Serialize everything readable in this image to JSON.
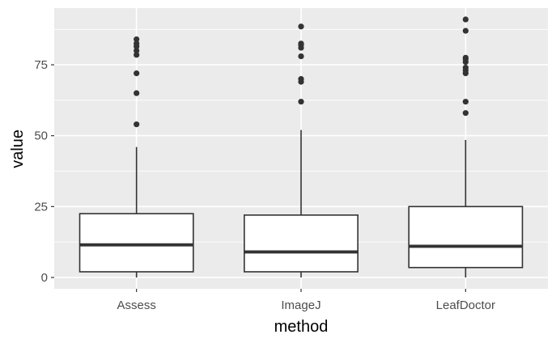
{
  "chart_data": {
    "type": "box",
    "xlabel": "method",
    "ylabel": "value",
    "ylim": [
      -4,
      95
    ],
    "yticks": [
      0,
      25,
      50,
      75
    ],
    "grid": true,
    "categories": [
      "Assess",
      "ImageJ",
      "LeafDoctor"
    ],
    "boxes": [
      {
        "name": "Assess",
        "min": 0,
        "q1": 2,
        "median": 11.5,
        "q3": 22.5,
        "whisker_high": 46,
        "outliers": [
          54,
          65,
          72,
          78.5,
          80,
          81.5,
          82.5,
          84
        ]
      },
      {
        "name": "ImageJ",
        "min": 0,
        "q1": 2,
        "median": 9,
        "q3": 22,
        "whisker_high": 52,
        "outliers": [
          62,
          69,
          70,
          78,
          81,
          82,
          82.5,
          88.5
        ]
      },
      {
        "name": "LeafDoctor",
        "min": 0,
        "q1": 3.5,
        "median": 11,
        "q3": 25,
        "whisker_high": 48.5,
        "outliers": [
          58,
          62,
          72,
          73,
          74,
          76,
          77,
          77.5,
          87,
          91
        ]
      }
    ],
    "colors": {
      "panel": "#ebebeb",
      "grid": "#ffffff",
      "box_fill": "#ffffff",
      "box_line": "#333333",
      "point": "#333333"
    }
  }
}
